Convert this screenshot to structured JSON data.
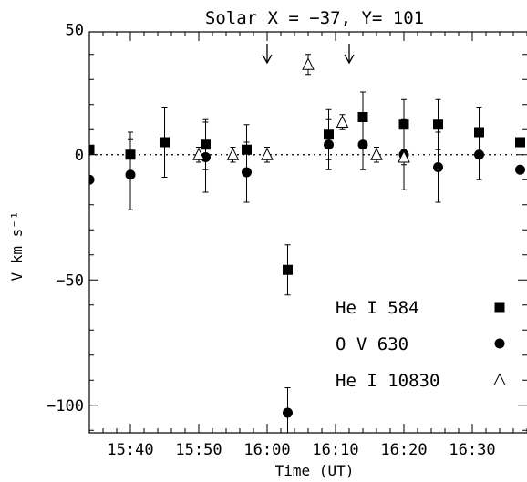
{
  "chart_data": {
    "type": "scatter",
    "title": "Solar X = −37, Y= 101",
    "xlabel": "Time (UT)",
    "ylabel": "V km s⁻¹",
    "xlim": [
      "15:34",
      "16:38"
    ],
    "ylim": [
      -111,
      49
    ],
    "x_ticks": [
      "15:40",
      "15:50",
      "16:00",
      "16:10",
      "16:20",
      "16:30"
    ],
    "y_ticks": [
      {
        "value": 50,
        "label": "50"
      },
      {
        "value": 0,
        "label": "0"
      },
      {
        "value": -50,
        "label": "−50"
      },
      {
        "value": -100,
        "label": "−100"
      }
    ],
    "zero_line": true,
    "arrows_at": [
      "16:00",
      "16:12"
    ],
    "legend_placement": "lower-right",
    "series": [
      {
        "name": "He I  584",
        "marker": "square",
        "points": [
          {
            "x": "15:34",
            "y": 2,
            "err": 0
          },
          {
            "x": "15:40",
            "y": 0,
            "err": 9
          },
          {
            "x": "15:45",
            "y": 5,
            "err": 14
          },
          {
            "x": "15:51",
            "y": 4,
            "err": 10
          },
          {
            "x": "15:57",
            "y": 2,
            "err": 10
          },
          {
            "x": "16:03",
            "y": -46,
            "err": 10
          },
          {
            "x": "16:09",
            "y": 8,
            "err": 10
          },
          {
            "x": "16:14",
            "y": 15,
            "err": 10
          },
          {
            "x": "16:20",
            "y": 12,
            "err": 10
          },
          {
            "x": "16:25",
            "y": 12,
            "err": 10
          },
          {
            "x": "16:31",
            "y": 9,
            "err": 10
          },
          {
            "x": "16:37",
            "y": 5,
            "err": 0
          }
        ]
      },
      {
        "name": "O  V  630",
        "marker": "circle",
        "points": [
          {
            "x": "15:34",
            "y": -10,
            "err": 0
          },
          {
            "x": "15:40",
            "y": -8,
            "err": 14
          },
          {
            "x": "15:51",
            "y": -1,
            "err": 14
          },
          {
            "x": "15:57",
            "y": -7,
            "err": 12
          },
          {
            "x": "16:03",
            "y": -103,
            "err": 10
          },
          {
            "x": "16:09",
            "y": 4,
            "err": 10
          },
          {
            "x": "16:14",
            "y": 4,
            "err": 10
          },
          {
            "x": "16:20",
            "y": 0,
            "err": 14
          },
          {
            "x": "16:25",
            "y": -5,
            "err": 14
          },
          {
            "x": "16:31",
            "y": 0,
            "err": 10
          },
          {
            "x": "16:37",
            "y": -6,
            "err": 0
          }
        ]
      },
      {
        "name": "He I  10830",
        "marker": "triangle-open",
        "points": [
          {
            "x": "15:50",
            "y": 0,
            "err": 3
          },
          {
            "x": "15:55",
            "y": 0,
            "err": 3
          },
          {
            "x": "16:00",
            "y": 0,
            "err": 3
          },
          {
            "x": "16:06",
            "y": 36,
            "err": 4
          },
          {
            "x": "16:11",
            "y": 13,
            "err": 3
          },
          {
            "x": "16:16",
            "y": 0,
            "err": 3
          },
          {
            "x": "16:20",
            "y": -1,
            "err": 3
          }
        ]
      }
    ]
  }
}
